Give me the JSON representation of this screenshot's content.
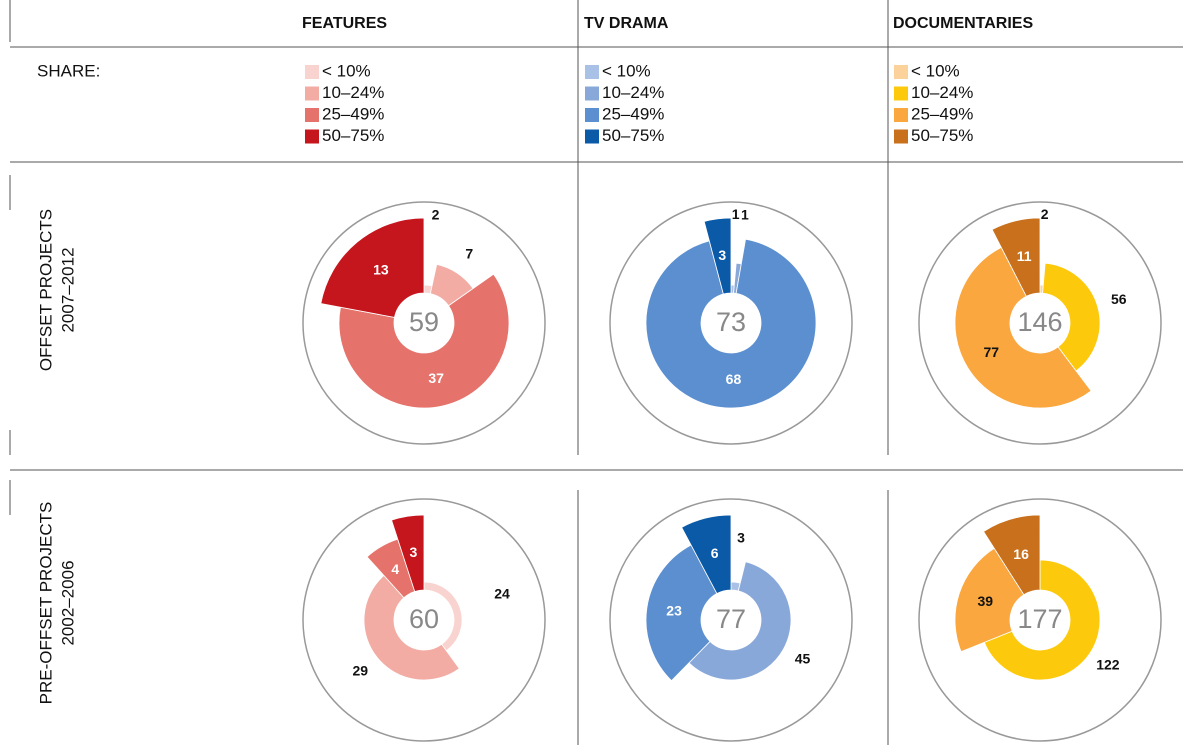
{
  "columns": [
    "FEATURES",
    "TV DRAMA",
    "DOCUMENTARIES"
  ],
  "legend_title": "SHARE:",
  "rows": [
    {
      "title": "OFFSET PROJECTS",
      "years": "2007–2012"
    },
    {
      "title": "PRE-OFFSET PROJECTS",
      "years": "2002–2006"
    }
  ],
  "chart_data": [
    {
      "type": "pie",
      "categories": [
        "< 10%",
        "10–24%",
        "25–49%",
        "50–75%"
      ],
      "values": [
        2,
        7,
        37,
        13
      ],
      "total": 59,
      "colors": [
        "#f8d3d0",
        "#f3aca4",
        "#e5736b",
        "#c5161d"
      ]
    },
    {
      "type": "pie",
      "categories": [
        "< 10%",
        "10–24%",
        "25–49%",
        "50–75%"
      ],
      "values": [
        1,
        1,
        68,
        3
      ],
      "total": 73,
      "colors": [
        "#a9c1e6",
        "#89a8da",
        "#5b8fcf",
        "#0b5aa8"
      ]
    },
    {
      "type": "pie",
      "categories": [
        "< 10%",
        "10–24%",
        "25–49%",
        "50–75%"
      ],
      "values": [
        2,
        56,
        77,
        11
      ],
      "total": 146,
      "colors": [
        "#fbd39a",
        "#fdc90d",
        "#f9a73e",
        "#c8701c"
      ]
    },
    {
      "type": "pie",
      "categories": [
        "< 10%",
        "10–24%",
        "25–49%",
        "50–75%"
      ],
      "values": [
        24,
        29,
        4,
        3
      ],
      "total": 60,
      "colors": [
        "#f8d3d0",
        "#f3aca4",
        "#e5736b",
        "#c5161d"
      ]
    },
    {
      "type": "pie",
      "categories": [
        "< 10%",
        "10–24%",
        "25–49%",
        "50–75%"
      ],
      "values": [
        3,
        45,
        23,
        6
      ],
      "total": 77,
      "colors": [
        "#a9c1e6",
        "#89a8da",
        "#5b8fcf",
        "#0b5aa8"
      ]
    },
    {
      "type": "pie",
      "categories": [
        "< 10%",
        "10–24%",
        "25–49%",
        "50–75%"
      ],
      "values": [
        null,
        122,
        39,
        16
      ],
      "total": 177,
      "colors": [
        "#fbd39a",
        "#fdc90d",
        "#f9a73e",
        "#c8701c"
      ]
    }
  ]
}
